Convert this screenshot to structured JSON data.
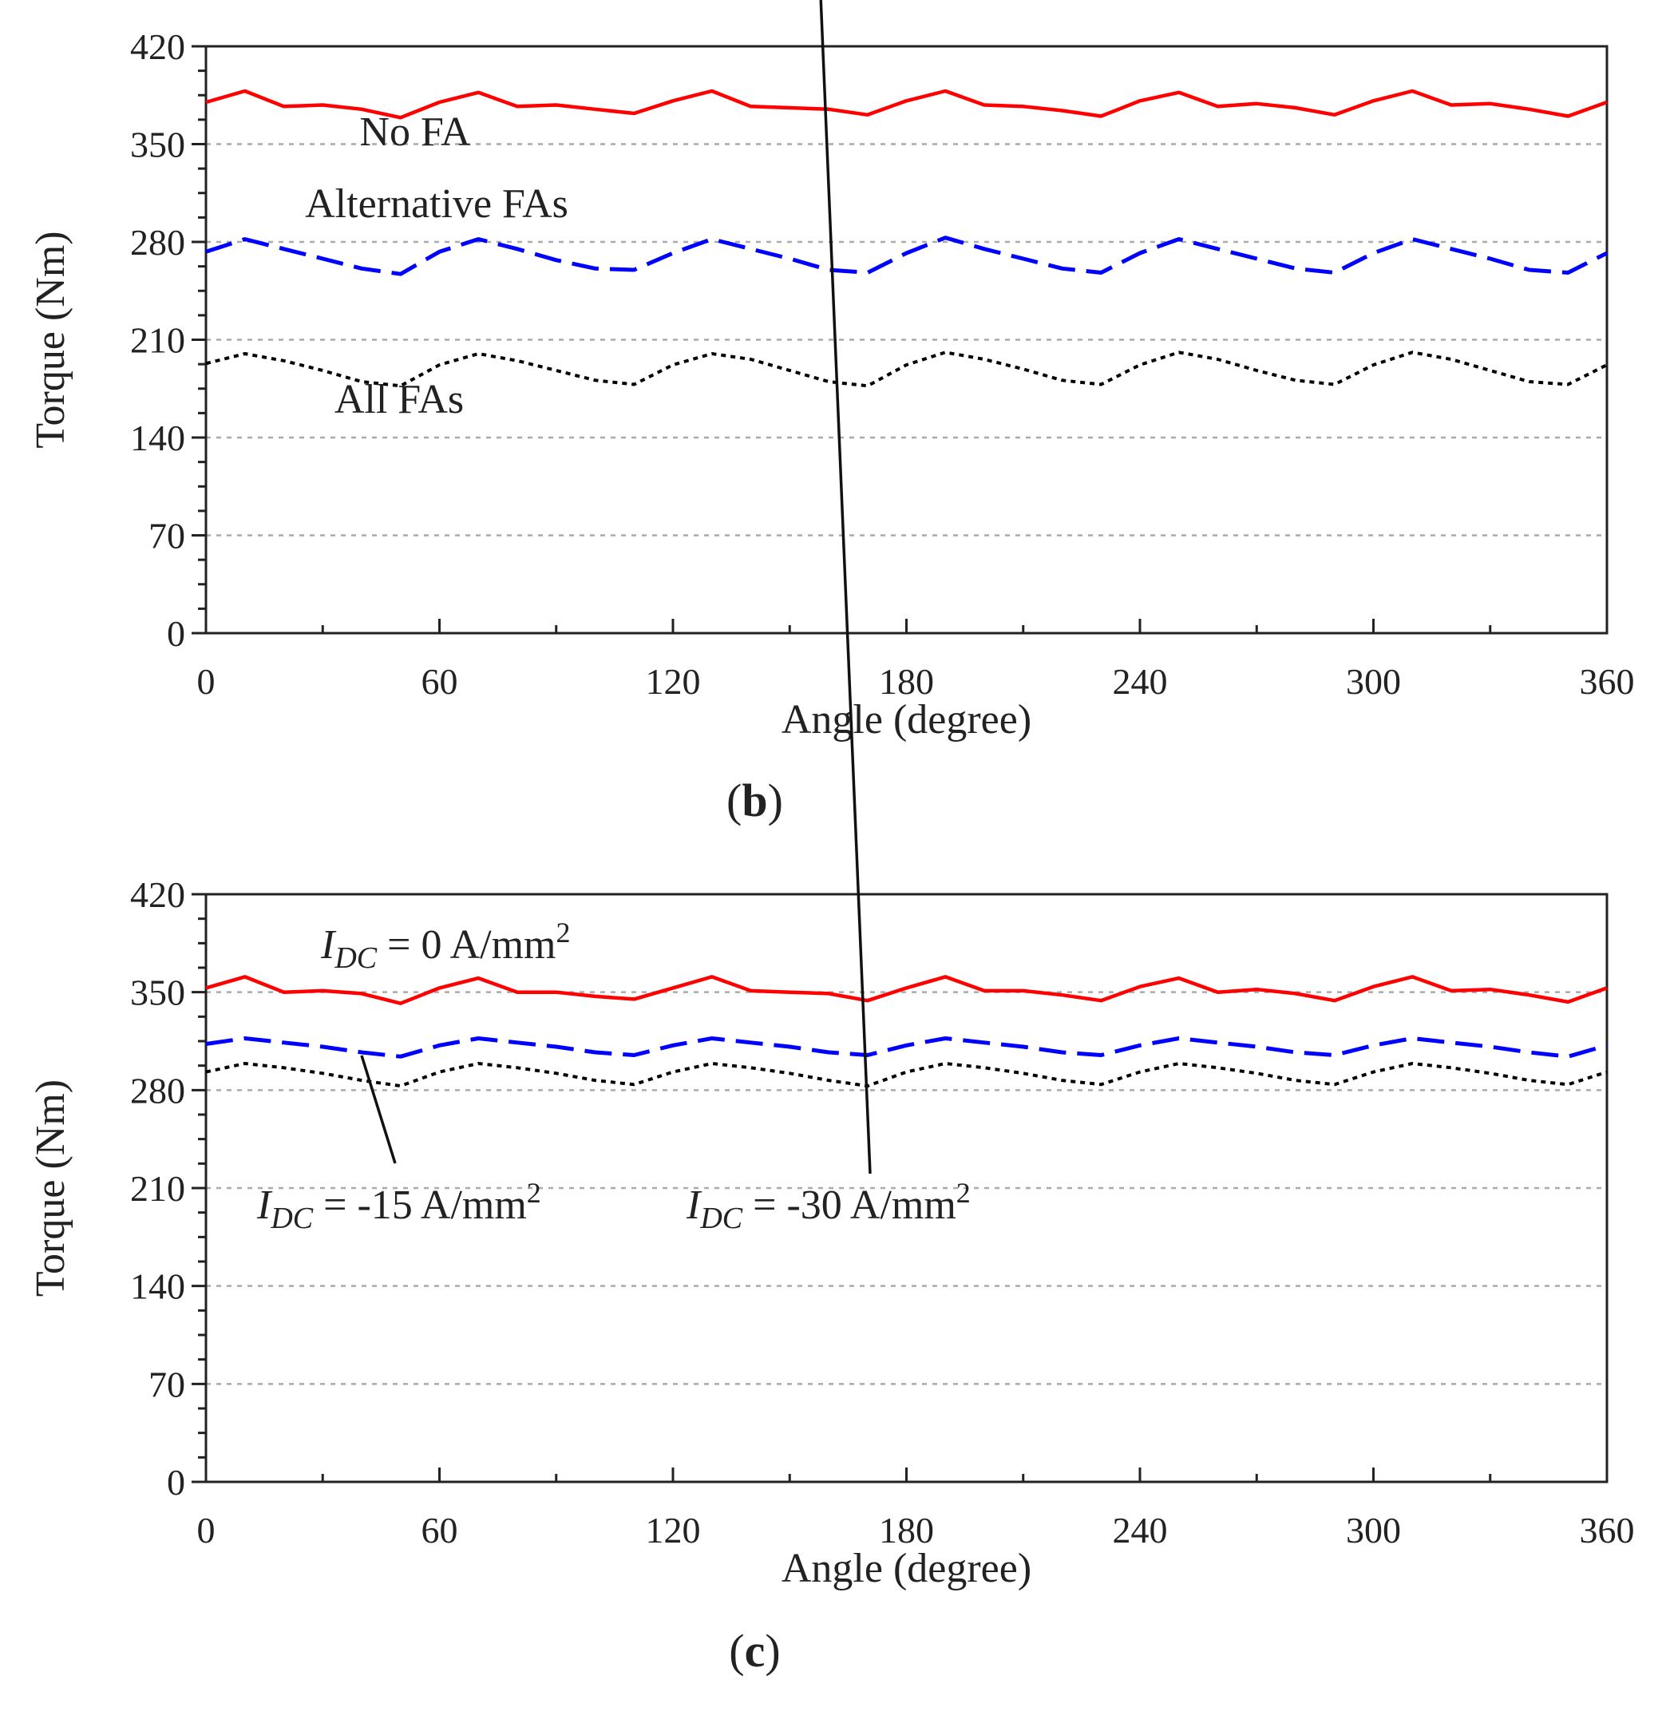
{
  "chart_data": [
    {
      "type": "line",
      "panel_label": "b",
      "xlabel": "Angle (degree)",
      "ylabel": "Torque (Nm)",
      "xlim": [
        0,
        360
      ],
      "ylim": [
        0,
        420
      ],
      "xticks": [
        0,
        60,
        120,
        180,
        240,
        300,
        360
      ],
      "yticks": [
        0,
        70,
        140,
        210,
        280,
        350,
        420
      ],
      "grid": "dotted horizontal at y ticks",
      "x": [
        0,
        10,
        20,
        30,
        40,
        50,
        60,
        70,
        80,
        90,
        100,
        110,
        120,
        130,
        140,
        150,
        160,
        170,
        180,
        190,
        200,
        210,
        220,
        230,
        240,
        250,
        260,
        270,
        280,
        290,
        300,
        310,
        320,
        330,
        340,
        350,
        360
      ],
      "series": [
        {
          "name": "No FA",
          "style": "solid",
          "color": "#ff0000",
          "values": [
            380,
            388,
            377,
            378,
            375,
            369,
            380,
            387,
            377,
            378,
            375,
            372,
            381,
            388,
            377,
            376,
            375,
            371,
            381,
            388,
            378,
            377,
            374,
            370,
            381,
            387,
            377,
            379,
            376,
            371,
            381,
            388,
            378,
            379,
            375,
            370,
            380
          ]
        },
        {
          "name": "Alternative FAs",
          "style": "dashed",
          "color": "#0000ff",
          "values": [
            273,
            282,
            275,
            268,
            261,
            257,
            273,
            282,
            275,
            267,
            261,
            260,
            272,
            282,
            275,
            268,
            260,
            258,
            272,
            283,
            275,
            268,
            261,
            258,
            272,
            282,
            275,
            268,
            261,
            258,
            272,
            282,
            275,
            268,
            260,
            258,
            272
          ]
        },
        {
          "name": "All FAs",
          "style": "dotted",
          "color": "#000000",
          "values": [
            193,
            200,
            195,
            188,
            180,
            177,
            192,
            200,
            195,
            188,
            181,
            178,
            192,
            200,
            196,
            188,
            180,
            177,
            192,
            201,
            196,
            189,
            181,
            178,
            192,
            201,
            196,
            188,
            181,
            178,
            192,
            201,
            196,
            188,
            180,
            178,
            192
          ]
        }
      ],
      "annotations": [
        "No FA",
        "Alternative FAs",
        "All FAs"
      ]
    },
    {
      "type": "line",
      "panel_label": "c",
      "xlabel": "Angle (degree)",
      "ylabel": "Torque (Nm)",
      "xlim": [
        0,
        360
      ],
      "ylim": [
        0,
        420
      ],
      "xticks": [
        0,
        60,
        120,
        180,
        240,
        300,
        360
      ],
      "yticks": [
        0,
        70,
        140,
        210,
        280,
        350,
        420
      ],
      "grid": "dotted horizontal at y ticks",
      "x": [
        0,
        10,
        20,
        30,
        40,
        50,
        60,
        70,
        80,
        90,
        100,
        110,
        120,
        130,
        140,
        150,
        160,
        170,
        180,
        190,
        200,
        210,
        220,
        230,
        240,
        250,
        260,
        270,
        280,
        290,
        300,
        310,
        320,
        330,
        340,
        350,
        360
      ],
      "series": [
        {
          "name": "I_DC = 0 A/mm2",
          "style": "solid",
          "color": "#ff0000",
          "values": [
            353,
            361,
            350,
            351,
            349,
            342,
            353,
            360,
            350,
            350,
            347,
            345,
            353,
            361,
            351,
            350,
            349,
            344,
            353,
            361,
            351,
            351,
            348,
            344,
            354,
            360,
            350,
            352,
            349,
            344,
            354,
            361,
            351,
            352,
            348,
            343,
            353
          ]
        },
        {
          "name": "I_DC = -15 A/mm2",
          "style": "dashed",
          "color": "#0000ff",
          "values": [
            313,
            317,
            314,
            311,
            307,
            304,
            312,
            317,
            314,
            311,
            307,
            305,
            312,
            317,
            314,
            311,
            307,
            305,
            312,
            317,
            314,
            311,
            307,
            305,
            312,
            317,
            314,
            311,
            307,
            305,
            312,
            317,
            314,
            311,
            307,
            304,
            312
          ]
        },
        {
          "name": "I_DC = -30 A/mm2",
          "style": "dotted",
          "color": "#000000",
          "values": [
            293,
            299,
            296,
            292,
            287,
            283,
            293,
            299,
            296,
            292,
            287,
            284,
            293,
            299,
            296,
            292,
            287,
            283,
            293,
            299,
            296,
            292,
            287,
            284,
            293,
            299,
            296,
            292,
            287,
            284,
            293,
            299,
            296,
            292,
            287,
            284,
            293
          ]
        }
      ],
      "annotations": [
        {
          "italic": "I",
          "sub": "DC",
          "rest": " = 0 A/mm",
          "sup": "2"
        },
        {
          "italic": "I",
          "sub": "DC",
          "rest": " = -15 A/mm",
          "sup": "2"
        },
        {
          "italic": "I",
          "sub": "DC",
          "rest": " = -30 A/mm",
          "sup": "2"
        }
      ]
    }
  ]
}
